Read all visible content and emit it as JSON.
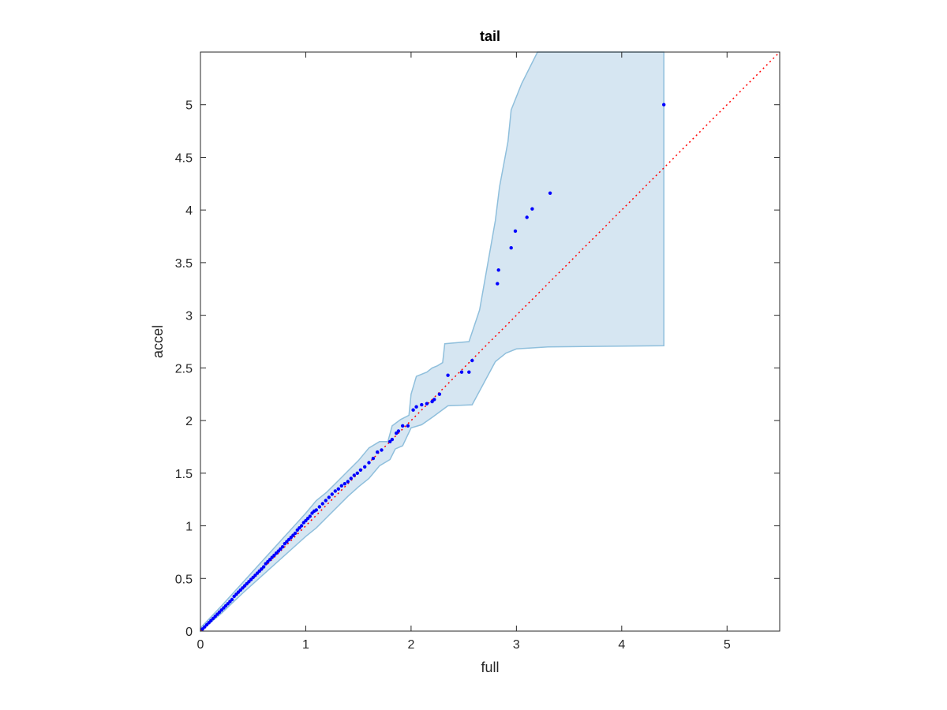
{
  "chart_data": {
    "type": "scatter",
    "title": "tail",
    "xlabel": "full",
    "ylabel": "accel",
    "xlim": [
      0,
      5.5
    ],
    "ylim": [
      0,
      5.5
    ],
    "xticks": [
      0,
      1,
      2,
      3,
      4,
      5
    ],
    "yticks": [
      0,
      0.5,
      1,
      1.5,
      2,
      2.5,
      3,
      3.5,
      4,
      4.5,
      5
    ],
    "xtick_labels": [
      "0",
      "1",
      "2",
      "3",
      "4",
      "5"
    ],
    "ytick_labels": [
      "0",
      "0.5",
      "1",
      "1.5",
      "2",
      "2.5",
      "3",
      "3.5",
      "4",
      "4.5",
      "5"
    ],
    "grid": false,
    "reference_line": {
      "from": [
        0,
        0
      ],
      "to": [
        5.5,
        5.5
      ],
      "style": "dotted",
      "color": "#ff0000"
    },
    "band": {
      "color": "#d6e6f2",
      "edge_color": "#8fbfdc",
      "upper": [
        [
          0,
          0.03
        ],
        [
          0.2,
          0.24
        ],
        [
          0.4,
          0.46
        ],
        [
          0.6,
          0.68
        ],
        [
          0.8,
          0.9
        ],
        [
          1.0,
          1.12
        ],
        [
          1.1,
          1.24
        ],
        [
          1.2,
          1.32
        ],
        [
          1.3,
          1.42
        ],
        [
          1.4,
          1.52
        ],
        [
          1.5,
          1.62
        ],
        [
          1.6,
          1.74
        ],
        [
          1.7,
          1.8
        ],
        [
          1.78,
          1.8
        ],
        [
          1.82,
          1.95
        ],
        [
          1.9,
          2.01
        ],
        [
          1.98,
          2.05
        ],
        [
          2.0,
          2.25
        ],
        [
          2.05,
          2.42
        ],
        [
          2.15,
          2.46
        ],
        [
          2.2,
          2.5
        ],
        [
          2.25,
          2.52
        ],
        [
          2.3,
          2.55
        ],
        [
          2.32,
          2.73
        ],
        [
          2.55,
          2.75
        ],
        [
          2.65,
          3.05
        ],
        [
          2.8,
          3.9
        ],
        [
          2.84,
          4.22
        ],
        [
          2.92,
          4.65
        ],
        [
          2.95,
          4.95
        ],
        [
          3.05,
          5.2
        ],
        [
          3.2,
          5.5
        ],
        [
          4.4,
          5.5
        ]
      ],
      "lower": [
        [
          4.4,
          2.71
        ],
        [
          3.3,
          2.7
        ],
        [
          3.0,
          2.68
        ],
        [
          2.9,
          2.64
        ],
        [
          2.8,
          2.56
        ],
        [
          2.58,
          2.15
        ],
        [
          2.35,
          2.14
        ],
        [
          2.2,
          2.03
        ],
        [
          2.1,
          1.96
        ],
        [
          2.0,
          1.93
        ],
        [
          1.92,
          1.76
        ],
        [
          1.85,
          1.73
        ],
        [
          1.8,
          1.63
        ],
        [
          1.7,
          1.57
        ],
        [
          1.6,
          1.45
        ],
        [
          1.5,
          1.37
        ],
        [
          1.4,
          1.28
        ],
        [
          1.3,
          1.18
        ],
        [
          1.2,
          1.08
        ],
        [
          1.1,
          0.98
        ],
        [
          1.0,
          0.9
        ],
        [
          0.8,
          0.72
        ],
        [
          0.6,
          0.54
        ],
        [
          0.4,
          0.36
        ],
        [
          0.2,
          0.17
        ],
        [
          0,
          0
        ]
      ]
    },
    "series": [
      {
        "marker": "dot",
        "color": "#0000ff",
        "x": [
          0.02,
          0.04,
          0.06,
          0.08,
          0.1,
          0.12,
          0.14,
          0.16,
          0.18,
          0.2,
          0.22,
          0.24,
          0.26,
          0.28,
          0.3,
          0.32,
          0.34,
          0.36,
          0.38,
          0.4,
          0.42,
          0.44,
          0.46,
          0.48,
          0.5,
          0.52,
          0.54,
          0.56,
          0.58,
          0.6,
          0.62,
          0.64,
          0.66,
          0.68,
          0.7,
          0.72,
          0.74,
          0.76,
          0.78,
          0.8,
          0.82,
          0.84,
          0.86,
          0.88,
          0.9,
          0.92,
          0.94,
          0.96,
          0.98,
          1.0,
          1.02,
          1.04,
          1.06,
          1.08,
          1.1,
          1.13,
          1.16,
          1.19,
          1.22,
          1.25,
          1.28,
          1.31,
          1.34,
          1.37,
          1.4,
          1.43,
          1.46,
          1.49,
          1.52,
          1.56,
          1.6,
          1.64,
          1.68,
          1.72,
          1.8,
          1.82,
          1.86,
          1.88,
          1.92,
          1.97,
          2.02,
          2.05,
          2.1,
          2.15,
          2.2,
          2.22,
          2.27,
          2.35,
          2.48,
          2.55,
          2.58,
          2.82,
          2.83,
          2.95,
          2.99,
          3.1,
          3.15,
          3.32,
          4.4
        ],
        "y": [
          0.02,
          0.04,
          0.06,
          0.08,
          0.1,
          0.12,
          0.14,
          0.16,
          0.18,
          0.2,
          0.22,
          0.24,
          0.26,
          0.28,
          0.3,
          0.33,
          0.35,
          0.37,
          0.39,
          0.41,
          0.43,
          0.45,
          0.47,
          0.49,
          0.51,
          0.53,
          0.55,
          0.57,
          0.59,
          0.61,
          0.64,
          0.66,
          0.68,
          0.7,
          0.72,
          0.74,
          0.76,
          0.78,
          0.8,
          0.83,
          0.85,
          0.87,
          0.89,
          0.91,
          0.93,
          0.96,
          0.98,
          1.0,
          1.03,
          1.05,
          1.07,
          1.09,
          1.12,
          1.14,
          1.15,
          1.18,
          1.21,
          1.24,
          1.27,
          1.3,
          1.33,
          1.35,
          1.38,
          1.4,
          1.42,
          1.45,
          1.48,
          1.5,
          1.53,
          1.56,
          1.6,
          1.64,
          1.7,
          1.72,
          1.8,
          1.82,
          1.88,
          1.9,
          1.95,
          1.95,
          2.1,
          2.13,
          2.15,
          2.16,
          2.18,
          2.2,
          2.25,
          2.43,
          2.46,
          2.46,
          2.57,
          3.3,
          3.43,
          3.64,
          3.8,
          3.93,
          4.01,
          4.16,
          5.0
        ]
      }
    ]
  }
}
